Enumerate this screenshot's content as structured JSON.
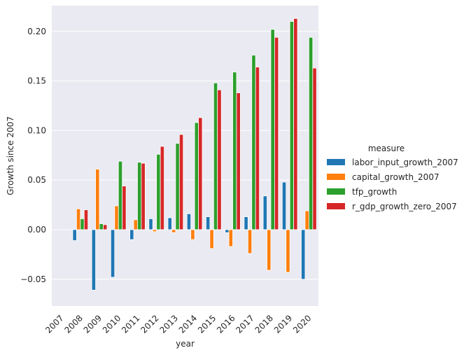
{
  "chart_data": {
    "type": "bar",
    "xlabel": "year",
    "ylabel": "Growth since 2007",
    "ylim": [
      -0.077,
      0.226
    ],
    "yticks": [
      -0.05,
      0.0,
      0.05,
      0.1,
      0.15,
      0.2
    ],
    "ytick_labels": [
      "−0.05",
      "0.00",
      "0.05",
      "0.10",
      "0.15",
      "0.20"
    ],
    "grid": true,
    "legend_position": "right",
    "legend_title": "measure",
    "categories": [
      "2007",
      "2008",
      "2009",
      "2010",
      "2011",
      "2012",
      "2013",
      "2014",
      "2015",
      "2016",
      "2017",
      "2018",
      "2019",
      "2020"
    ],
    "series": [
      {
        "name": "labor_input_growth_2007",
        "color": "#1f77b4",
        "values": [
          0.0,
          -0.011,
          -0.061,
          -0.048,
          -0.01,
          0.011,
          0.012,
          0.016,
          0.013,
          -0.003,
          0.013,
          0.034,
          0.048,
          -0.05
        ]
      },
      {
        "name": "capital_growth_2007",
        "color": "#ff7f0e",
        "values": [
          0.0,
          0.021,
          0.061,
          0.024,
          0.01,
          -0.002,
          -0.003,
          -0.01,
          -0.019,
          -0.017,
          -0.024,
          -0.041,
          -0.043,
          0.019
        ]
      },
      {
        "name": "tfp_growth",
        "color": "#2ca02c",
        "values": [
          0.0,
          0.011,
          0.006,
          0.069,
          0.068,
          0.076,
          0.087,
          0.108,
          0.148,
          0.159,
          0.176,
          0.202,
          0.21,
          0.194
        ]
      },
      {
        "name": "r_gdp_growth_zero_2007",
        "color": "#d62728",
        "values": [
          0.0,
          0.02,
          0.005,
          0.044,
          0.067,
          0.084,
          0.096,
          0.113,
          0.141,
          0.138,
          0.164,
          0.194,
          0.213,
          0.163
        ]
      }
    ]
  }
}
